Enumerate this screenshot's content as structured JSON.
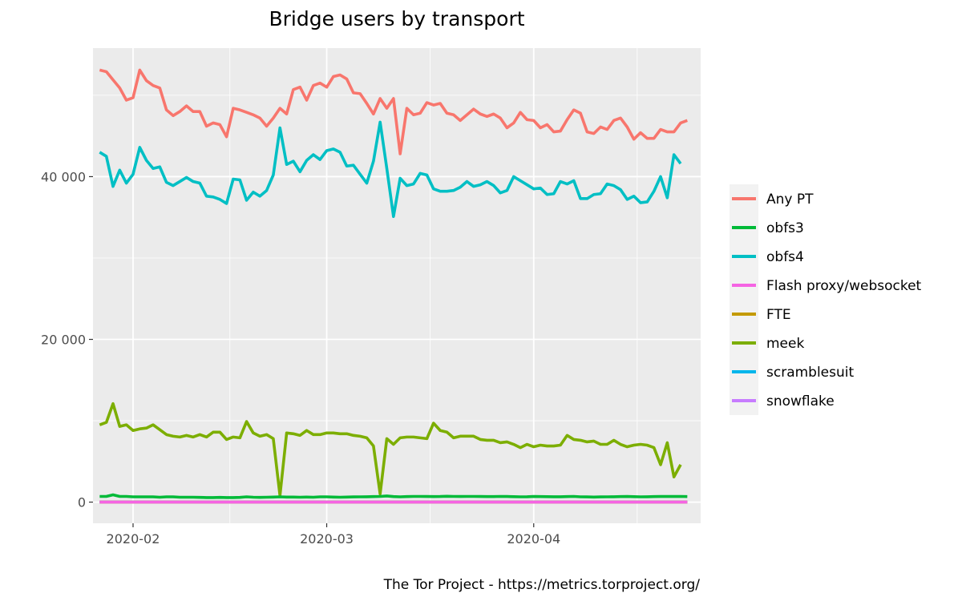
{
  "chart_data": {
    "type": "line",
    "title": "Bridge users by transport",
    "caption": "The Tor Project - https://metrics.torproject.org/",
    "xlabel": "",
    "ylabel": "",
    "x_start": "2020-01-27",
    "x_end": "2020-04-25",
    "xlim": [
      "2020-01-26",
      "2020-04-26"
    ],
    "ylim": [
      -2600,
      55800
    ],
    "x_ticks": [
      {
        "date": "2020-02-01",
        "label": "2020-02"
      },
      {
        "date": "2020-03-01",
        "label": "2020-03"
      },
      {
        "date": "2020-04-01",
        "label": "2020-04"
      }
    ],
    "y_ticks": [
      {
        "value": 0,
        "label": "0"
      },
      {
        "value": 20000,
        "label": "20 000"
      },
      {
        "value": 40000,
        "label": "40 000"
      }
    ],
    "grid": true,
    "legend_position": "right",
    "series": [
      {
        "name": "Any PT",
        "color": "#F8766D",
        "values": [
          53100,
          52900,
          51900,
          50900,
          49400,
          49700,
          53100,
          51800,
          51200,
          50900,
          48200,
          47500,
          48000,
          48700,
          48000,
          48000,
          46200,
          46600,
          46400,
          44900,
          48400,
          48200,
          47900,
          47600,
          47200,
          46200,
          47200,
          48400,
          47700,
          50700,
          51000,
          49400,
          51200,
          51500,
          51000,
          52300,
          52500,
          52000,
          50300,
          50200,
          49000,
          47700,
          49600,
          48400,
          49600,
          42800,
          48400,
          47600,
          47800,
          49100,
          48800,
          49000,
          47800,
          47600,
          46900,
          47600,
          48300,
          47700,
          47400,
          47700,
          47200,
          46000,
          46600,
          47900,
          47000,
          46900,
          46000,
          46400,
          45500,
          45600,
          47000,
          48200,
          47800,
          45500,
          45300,
          46100,
          45800,
          46900,
          47200,
          46100,
          44600,
          45400,
          44700,
          44700,
          45800,
          45500,
          45500,
          46600,
          46900
        ]
      },
      {
        "name": "obfs3",
        "color": "#00BA38",
        "values": [
          700,
          700,
          900,
          700,
          700,
          650,
          650,
          650,
          650,
          600,
          650,
          650,
          600,
          600,
          600,
          580,
          560,
          560,
          580,
          560,
          560,
          580,
          650,
          600,
          580,
          600,
          620,
          650,
          620,
          620,
          600,
          620,
          600,
          650,
          650,
          620,
          600,
          620,
          640,
          650,
          660,
          680,
          700,
          750,
          680,
          650,
          680,
          700,
          700,
          690,
          680,
          690,
          720,
          700,
          690,
          700,
          700,
          690,
          680,
          680,
          700,
          690,
          670,
          650,
          660,
          690,
          680,
          670,
          660,
          660,
          680,
          700,
          650,
          640,
          620,
          640,
          650,
          660,
          680,
          690,
          670,
          650,
          660,
          680,
          690,
          700,
          690,
          700,
          680
        ]
      },
      {
        "name": "obfs4",
        "color": "#00BFC4",
        "values": [
          43000,
          42500,
          38800,
          40800,
          39200,
          40300,
          43600,
          42000,
          41000,
          41200,
          39300,
          38900,
          39400,
          39900,
          39400,
          39200,
          37600,
          37500,
          37200,
          36700,
          39700,
          39600,
          37100,
          38100,
          37600,
          38300,
          40200,
          46000,
          41500,
          41900,
          40600,
          42000,
          42700,
          42100,
          43200,
          43400,
          43000,
          41300,
          41400,
          40300,
          39200,
          41900,
          46700,
          41000,
          35100,
          39800,
          38900,
          39100,
          40400,
          40200,
          38500,
          38200,
          38200,
          38300,
          38700,
          39400,
          38800,
          39000,
          39400,
          38900,
          38000,
          38300,
          40000,
          39500,
          39000,
          38500,
          38600,
          37800,
          37900,
          39400,
          39100,
          39500,
          37300,
          37300,
          37800,
          37900,
          39100,
          38900,
          38400,
          37200,
          37600,
          36800,
          36900,
          38200,
          40000,
          37400,
          42700,
          41600,
          null
        ]
      },
      {
        "name": "Flash proxy/websocket",
        "color": "#F564E3",
        "values": [
          0,
          0,
          0,
          0,
          0,
          0,
          0,
          0,
          0,
          0,
          0,
          0,
          0,
          0,
          0,
          0,
          0,
          0,
          0,
          0,
          0,
          0,
          0,
          0,
          0,
          0,
          0,
          0,
          0,
          0,
          0,
          0,
          0,
          0,
          0,
          0,
          0,
          0,
          0,
          0,
          0,
          0,
          0,
          0,
          0,
          0,
          0,
          0,
          0,
          0,
          0,
          0,
          0,
          0,
          0,
          0,
          0,
          0,
          0,
          0,
          0,
          0,
          0,
          0,
          0,
          0,
          0,
          0,
          0,
          0,
          0,
          0,
          0,
          0,
          0,
          0,
          0,
          0,
          0,
          0,
          0,
          0,
          0,
          0,
          0,
          0,
          0,
          0,
          0
        ]
      },
      {
        "name": "FTE",
        "color": "#C49A00",
        "values": [
          0,
          0,
          0,
          0,
          0,
          0,
          0,
          0,
          0,
          0,
          0,
          0,
          0,
          0,
          0,
          0,
          0,
          0,
          0,
          0,
          0,
          0,
          0,
          0,
          0,
          0,
          0,
          0,
          0,
          0,
          0,
          0,
          0,
          0,
          0,
          0,
          0,
          0,
          0,
          0,
          0,
          0,
          0,
          0,
          0,
          0,
          0,
          0,
          0,
          0,
          0,
          0,
          0,
          0,
          0,
          0,
          0,
          0,
          0,
          0,
          0,
          0,
          0,
          0,
          0,
          0,
          0,
          0,
          0,
          0,
          0,
          0,
          0,
          0,
          0,
          0,
          0,
          0,
          0,
          0,
          0,
          0,
          0,
          0,
          0,
          0,
          0,
          0,
          0
        ]
      },
      {
        "name": "meek",
        "color": "#7CAE00",
        "values": [
          9500,
          9800,
          12100,
          9300,
          9500,
          8800,
          9000,
          9100,
          9500,
          8900,
          8300,
          8100,
          8000,
          8200,
          8000,
          8300,
          8000,
          8600,
          8600,
          7700,
          8000,
          7900,
          9900,
          8500,
          8100,
          8300,
          7800,
          800,
          8500,
          8400,
          8200,
          8800,
          8300,
          8300,
          8500,
          8500,
          8400,
          8400,
          8200,
          8100,
          7900,
          6900,
          1000,
          7800,
          7100,
          7900,
          8000,
          8000,
          7900,
          7800,
          9700,
          8800,
          8600,
          7900,
          8100,
          8100,
          8100,
          7700,
          7600,
          7600,
          7300,
          7400,
          7100,
          6700,
          7100,
          6800,
          7000,
          6900,
          6900,
          7000,
          8200,
          7700,
          7600,
          7400,
          7500,
          7100,
          7100,
          7600,
          7100,
          6800,
          7000,
          7100,
          7000,
          6700,
          4600,
          7300,
          3100,
          4600,
          null
        ]
      },
      {
        "name": "scramblesuit",
        "color": "#00B6EB",
        "values": [
          0,
          0,
          0,
          0,
          0,
          0,
          0,
          0,
          0,
          0,
          0,
          0,
          0,
          0,
          0,
          0,
          0,
          0,
          0,
          0,
          0,
          0,
          0,
          0,
          0,
          0,
          0,
          0,
          0,
          0,
          0,
          0,
          0,
          0,
          0,
          0,
          0,
          0,
          0,
          0,
          0,
          0,
          0,
          0,
          0,
          0,
          0,
          0,
          0,
          0,
          0,
          0,
          0,
          0,
          0,
          0,
          0,
          0,
          0,
          0,
          0,
          0,
          0,
          0,
          0,
          0,
          0,
          0,
          0,
          0,
          0,
          0,
          0,
          0,
          0,
          0,
          0,
          0,
          0,
          0,
          0,
          0,
          0,
          0,
          0,
          0,
          0,
          0,
          0
        ]
      },
      {
        "name": "snowflake",
        "color": "#C77CFF",
        "values": [
          0,
          0,
          0,
          0,
          0,
          0,
          0,
          0,
          0,
          0,
          0,
          0,
          0,
          0,
          0,
          0,
          0,
          0,
          0,
          0,
          0,
          0,
          0,
          0,
          0,
          0,
          0,
          0,
          0,
          0,
          0,
          0,
          0,
          0,
          0,
          0,
          0,
          0,
          0,
          0,
          0,
          0,
          0,
          0,
          0,
          0,
          0,
          0,
          0,
          0,
          0,
          0,
          0,
          0,
          0,
          0,
          0,
          0,
          0,
          0,
          0,
          0,
          0,
          0,
          0,
          0,
          0,
          0,
          0,
          0,
          0,
          0,
          0,
          0,
          0,
          0,
          0,
          0,
          0,
          0,
          0,
          0,
          0,
          0,
          0,
          0,
          0,
          0,
          0
        ]
      }
    ]
  }
}
